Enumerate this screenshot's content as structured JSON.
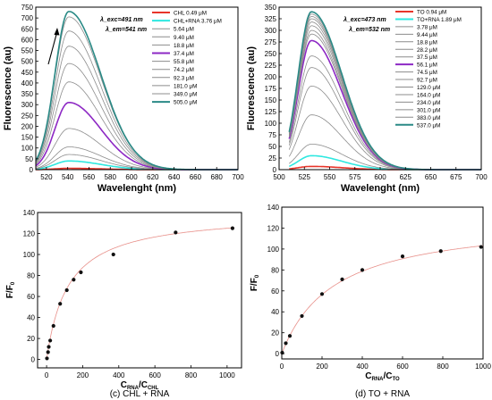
{
  "chart_data": [
    {
      "type": "line",
      "ylabel": "Fluorescence (au)",
      "xlabel": "Wavelenght (nm)",
      "annotations": [
        "λ_exc=491 nm",
        "λ_em=541 nm"
      ],
      "xlim": [
        510,
        700
      ],
      "ylim": [
        0,
        750
      ],
      "xticks": [
        520,
        540,
        560,
        580,
        600,
        620,
        640,
        660,
        680,
        700
      ],
      "yticks": [
        0,
        50,
        100,
        150,
        200,
        250,
        300,
        350,
        400,
        450,
        500,
        550,
        600,
        650,
        700,
        750
      ],
      "peak_x": 541,
      "legend_position": "right",
      "series": [
        {
          "name": "CHL 0.49 μM",
          "color": "#e8352a",
          "peak": 6
        },
        {
          "name": "CHL+RNA 3.76 μM",
          "color": "#2ee8e0",
          "peak": 40
        },
        {
          "name": "5.64 μM",
          "color": "#8c8c8c",
          "peak": 70
        },
        {
          "name": "9.40 μM",
          "color": "#8c8c8c",
          "peak": 105
        },
        {
          "name": "18.8 μM",
          "color": "#8c8c8c",
          "peak": 190
        },
        {
          "name": "37.4 μM",
          "color": "#8d28c4",
          "peak": 310
        },
        {
          "name": "55.8 μM",
          "color": "#8c8c8c",
          "peak": 405
        },
        {
          "name": "74.2 μM",
          "color": "#8c8c8c",
          "peak": 490
        },
        {
          "name": "92.3 μM",
          "color": "#8c8c8c",
          "peak": 570
        },
        {
          "name": "181.0 μM",
          "color": "#8c8c8c",
          "peak": 640
        },
        {
          "name": "349.0 μM",
          "color": "#8c8c8c",
          "peak": 705
        },
        {
          "name": "505.0 μM",
          "color": "#2a8a86",
          "peak": 730
        }
      ]
    },
    {
      "type": "line",
      "ylabel": "Fluorescence (au)",
      "xlabel": "Wavelenght (nm)",
      "annotations": [
        "λ_exc=473 nm",
        "λ_em=532 nm"
      ],
      "xlim": [
        500,
        700
      ],
      "ylim": [
        0,
        350
      ],
      "xticks": [
        500,
        525,
        550,
        575,
        600,
        625,
        650,
        675,
        700
      ],
      "yticks": [
        0,
        25,
        50,
        75,
        100,
        125,
        150,
        175,
        200,
        225,
        250,
        275,
        300,
        325,
        350
      ],
      "peak_x": 532,
      "legend_position": "right",
      "series": [
        {
          "name": "TO 0.94 μM",
          "color": "#e8352a",
          "peak": 7
        },
        {
          "name": "TO+RNA 1.89 μM",
          "color": "#2ee8e0",
          "peak": 30
        },
        {
          "name": "3.78 μM",
          "color": "#8c8c8c",
          "peak": 55
        },
        {
          "name": "9.44 μM",
          "color": "#8c8c8c",
          "peak": 118
        },
        {
          "name": "18.8 μM",
          "color": "#8c8c8c",
          "peak": 180
        },
        {
          "name": "28.2 μM",
          "color": "#8c8c8c",
          "peak": 220
        },
        {
          "name": "37.5 μM",
          "color": "#8c8c8c",
          "peak": 245
        },
        {
          "name": "56.1 μM",
          "color": "#8d28c4",
          "peak": 278
        },
        {
          "name": "74.5 μM",
          "color": "#8c8c8c",
          "peak": 292
        },
        {
          "name": "92.7 μM",
          "color": "#8c8c8c",
          "peak": 300
        },
        {
          "name": "129.0 μM",
          "color": "#8c8c8c",
          "peak": 310
        },
        {
          "name": "164.0 μM",
          "color": "#8c8c8c",
          "peak": 318
        },
        {
          "name": "234.0 μM",
          "color": "#8c8c8c",
          "peak": 325
        },
        {
          "name": "301.0 μM",
          "color": "#8c8c8c",
          "peak": 330
        },
        {
          "name": "383.0 μM",
          "color": "#8c8c8c",
          "peak": 335
        },
        {
          "name": "537.0 μM",
          "color": "#2a8a86",
          "peak": 340
        }
      ]
    },
    {
      "type": "scatter",
      "caption": "(c) CHL + RNA",
      "ylabel": "F/F0",
      "xlabel": "CRNA/CCHL",
      "xlim": [
        -50,
        1080
      ],
      "ylim": [
        -8,
        140
      ],
      "xticks": [
        0,
        200,
        400,
        600,
        800,
        1000
      ],
      "yticks": [
        0,
        20,
        40,
        60,
        80,
        100,
        120,
        140
      ],
      "points": {
        "x": [
          2,
          8,
          12,
          20,
          38,
          75,
          112,
          150,
          190,
          370,
          715,
          1030
        ],
        "y": [
          1,
          7,
          12,
          18,
          32,
          53,
          66,
          76,
          83,
          100,
          121,
          125
        ]
      },
      "fit_color": "#e8908a"
    },
    {
      "type": "scatter",
      "caption": "(d) TO + RNA",
      "ylabel": "F/F0",
      "xlabel": "CRNA/CTO",
      "xlim": [
        0,
        1000
      ],
      "ylim": [
        -5,
        140
      ],
      "xticks": [
        0,
        200,
        400,
        600,
        800,
        1000
      ],
      "yticks": [
        0,
        20,
        40,
        60,
        80,
        100,
        120,
        140
      ],
      "points": {
        "x": [
          2,
          20,
          40,
          100,
          200,
          300,
          400,
          600,
          790,
          990
        ],
        "y": [
          1,
          10,
          17,
          36,
          57,
          71,
          80,
          93,
          98,
          102
        ]
      },
      "fit_color": "#e8908a"
    }
  ]
}
